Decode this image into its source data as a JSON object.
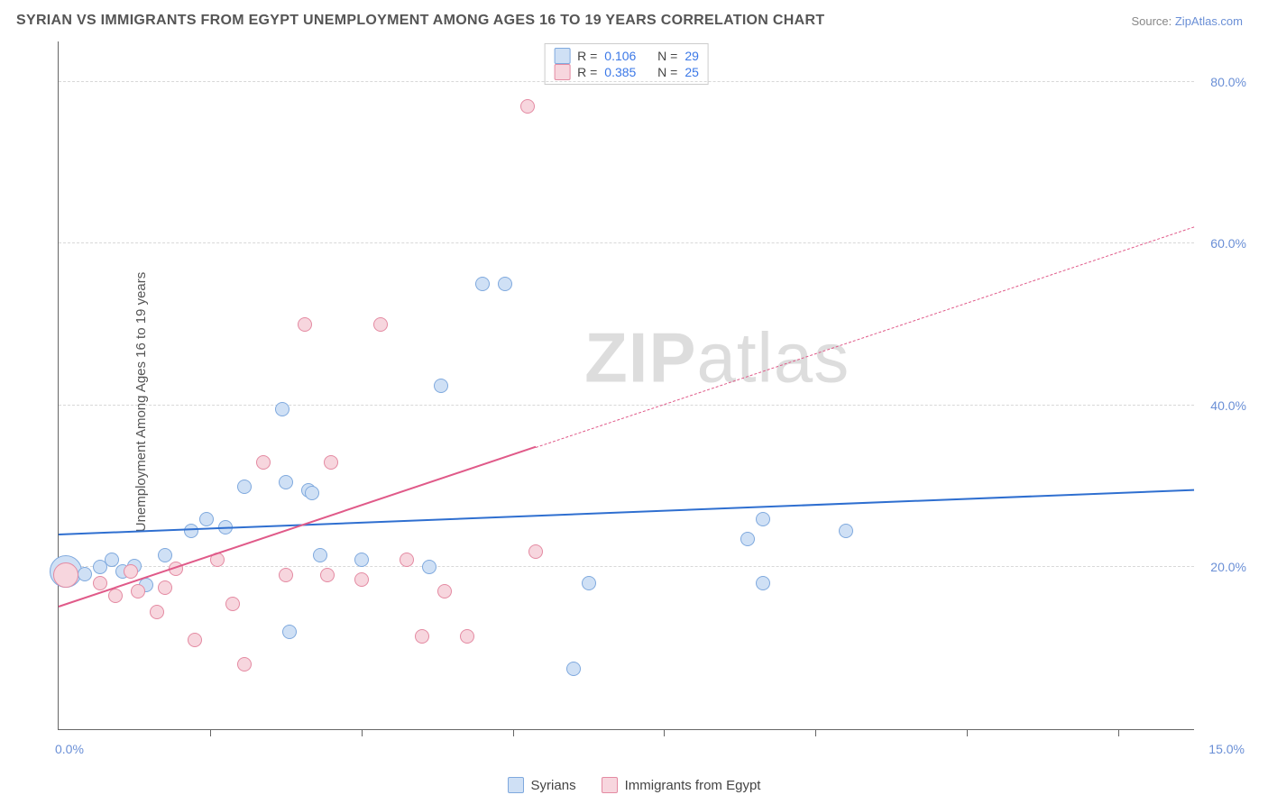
{
  "header": {
    "title": "SYRIAN VS IMMIGRANTS FROM EGYPT UNEMPLOYMENT AMONG AGES 16 TO 19 YEARS CORRELATION CHART",
    "source_prefix": "Source: ",
    "source_name": "ZipAtlas.com"
  },
  "watermark": {
    "bold": "ZIP",
    "rest": "atlas"
  },
  "chart": {
    "type": "scatter-with-trend",
    "ylabel": "Unemployment Among Ages 16 to 19 years",
    "xlim": [
      0,
      15
    ],
    "ylim": [
      0,
      85
    ],
    "x_ticks": [
      2,
      4,
      6,
      8,
      10,
      12,
      14
    ],
    "y_ticks": [
      20,
      40,
      60,
      80
    ],
    "y_tick_labels": [
      "20.0%",
      "40.0%",
      "60.0%",
      "80.0%"
    ],
    "x_min_label": "0.0%",
    "x_max_label": "15.0%",
    "grid_color": "#d8d8d8",
    "axis_color": "#666666",
    "background_color": "#ffffff",
    "tick_label_color": "#6a8fd6",
    "axis_label_color": "#555555",
    "point_radius": 8,
    "point_border_width": 1.5,
    "series": [
      {
        "key": "syrians",
        "label": "Syrians",
        "R": "0.106",
        "N": "29",
        "fill": "#cfe0f5",
        "stroke": "#7fa9de",
        "trend_color": "#2f6fd0",
        "trend": {
          "y_at_xmin": 24.0,
          "y_at_xmax": 29.5
        },
        "points": [
          {
            "x": 0.1,
            "y": 19.5,
            "r": 18
          },
          {
            "x": 0.35,
            "y": 19.2
          },
          {
            "x": 0.55,
            "y": 20.0
          },
          {
            "x": 0.7,
            "y": 21.0
          },
          {
            "x": 0.85,
            "y": 19.5
          },
          {
            "x": 1.0,
            "y": 20.2
          },
          {
            "x": 1.15,
            "y": 17.8
          },
          {
            "x": 1.4,
            "y": 21.5
          },
          {
            "x": 1.75,
            "y": 24.5
          },
          {
            "x": 1.95,
            "y": 26.0
          },
          {
            "x": 2.2,
            "y": 25.0
          },
          {
            "x": 2.45,
            "y": 30.0
          },
          {
            "x": 2.95,
            "y": 39.5
          },
          {
            "x": 3.0,
            "y": 30.5
          },
          {
            "x": 3.05,
            "y": 12.0
          },
          {
            "x": 3.3,
            "y": 29.5
          },
          {
            "x": 3.35,
            "y": 29.2
          },
          {
            "x": 3.45,
            "y": 21.5
          },
          {
            "x": 4.0,
            "y": 21.0
          },
          {
            "x": 4.9,
            "y": 20.0
          },
          {
            "x": 5.05,
            "y": 42.5
          },
          {
            "x": 5.6,
            "y": 55.0
          },
          {
            "x": 5.9,
            "y": 55.0
          },
          {
            "x": 6.8,
            "y": 7.5
          },
          {
            "x": 7.0,
            "y": 18.0
          },
          {
            "x": 9.1,
            "y": 23.5
          },
          {
            "x": 9.3,
            "y": 26.0
          },
          {
            "x": 9.3,
            "y": 18.0
          },
          {
            "x": 10.4,
            "y": 24.5
          }
        ]
      },
      {
        "key": "egypt",
        "label": "Immigrants from Egypt",
        "R": "0.385",
        "N": "25",
        "fill": "#f7d6de",
        "stroke": "#e48aa2",
        "trend_color": "#e05a89",
        "trend": {
          "y_at_xmin": 15.0,
          "y_at_xmax": 62.0
        },
        "points": [
          {
            "x": 0.1,
            "y": 19.0,
            "r": 14
          },
          {
            "x": 0.55,
            "y": 18.0
          },
          {
            "x": 0.75,
            "y": 16.5
          },
          {
            "x": 0.95,
            "y": 19.5
          },
          {
            "x": 1.05,
            "y": 17.0
          },
          {
            "x": 1.3,
            "y": 14.5
          },
          {
            "x": 1.4,
            "y": 17.5
          },
          {
            "x": 1.55,
            "y": 19.8
          },
          {
            "x": 1.8,
            "y": 11.0
          },
          {
            "x": 2.1,
            "y": 21.0
          },
          {
            "x": 2.3,
            "y": 15.5
          },
          {
            "x": 2.45,
            "y": 8.0
          },
          {
            "x": 2.7,
            "y": 33.0
          },
          {
            "x": 3.0,
            "y": 19.0
          },
          {
            "x": 3.25,
            "y": 50.0
          },
          {
            "x": 3.55,
            "y": 19.0
          },
          {
            "x": 3.6,
            "y": 33.0
          },
          {
            "x": 4.0,
            "y": 18.5
          },
          {
            "x": 4.25,
            "y": 50.0
          },
          {
            "x": 4.6,
            "y": 21.0
          },
          {
            "x": 4.8,
            "y": 11.5
          },
          {
            "x": 5.1,
            "y": 17.0
          },
          {
            "x": 5.4,
            "y": 11.5
          },
          {
            "x": 6.2,
            "y": 77.0
          },
          {
            "x": 6.3,
            "y": 22.0
          }
        ]
      }
    ],
    "legend_top": {
      "r_label": "R =",
      "n_label": "N ="
    }
  }
}
